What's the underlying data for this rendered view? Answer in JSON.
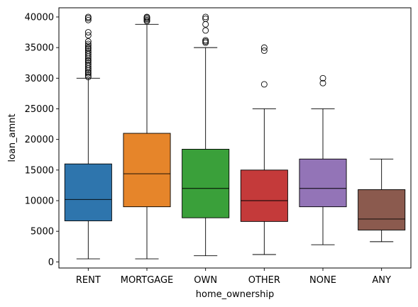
{
  "chart_data": {
    "type": "box",
    "xlabel": "home_ownership",
    "ylabel": "loan_amnt",
    "ylim": [
      -1000,
      41500
    ],
    "yticks": [
      0,
      5000,
      10000,
      15000,
      20000,
      25000,
      30000,
      35000,
      40000
    ],
    "grid": false,
    "categories": [
      "RENT",
      "MORTGAGE",
      "OWN",
      "OTHER",
      "NONE",
      "ANY"
    ],
    "boxes": [
      {
        "category": "RENT",
        "color": "#2e75ad",
        "whisker_low": 500,
        "q1": 6700,
        "median": 10200,
        "q3": 16000,
        "whisker_high": 30000,
        "outliers": [
          30200,
          30500,
          30800,
          31000,
          31300,
          31600,
          31900,
          32200,
          32500,
          32800,
          33000,
          33300,
          33600,
          33900,
          34200,
          34500,
          34800,
          35000,
          35300,
          35600,
          36000,
          37000,
          37500,
          39500,
          39800,
          40000
        ]
      },
      {
        "category": "MORTGAGE",
        "color": "#e6852a",
        "whisker_low": 500,
        "q1": 9000,
        "median": 14400,
        "q3": 21000,
        "whisker_high": 38800,
        "outliers": [
          39300,
          39500,
          39700,
          39900,
          40000
        ]
      },
      {
        "category": "OWN",
        "color": "#3aa03a",
        "whisker_low": 1000,
        "q1": 7200,
        "median": 12000,
        "q3": 18400,
        "whisker_high": 35000,
        "outliers": [
          35800,
          36000,
          36200,
          37800,
          38800,
          39700,
          40000
        ]
      },
      {
        "category": "OTHER",
        "color": "#c43a3a",
        "whisker_low": 1200,
        "q1": 6600,
        "median": 10000,
        "q3": 15000,
        "whisker_high": 25000,
        "outliers": [
          29000,
          34500,
          35000
        ]
      },
      {
        "category": "NONE",
        "color": "#9374b7",
        "whisker_low": 2800,
        "q1": 9000,
        "median": 12000,
        "q3": 16800,
        "whisker_high": 25000,
        "outliers": [
          29200,
          30000
        ]
      },
      {
        "category": "ANY",
        "color": "#8b5a4e",
        "whisker_low": 3300,
        "q1": 5200,
        "median": 7000,
        "q3": 11800,
        "whisker_high": 16800,
        "outliers": []
      }
    ]
  }
}
